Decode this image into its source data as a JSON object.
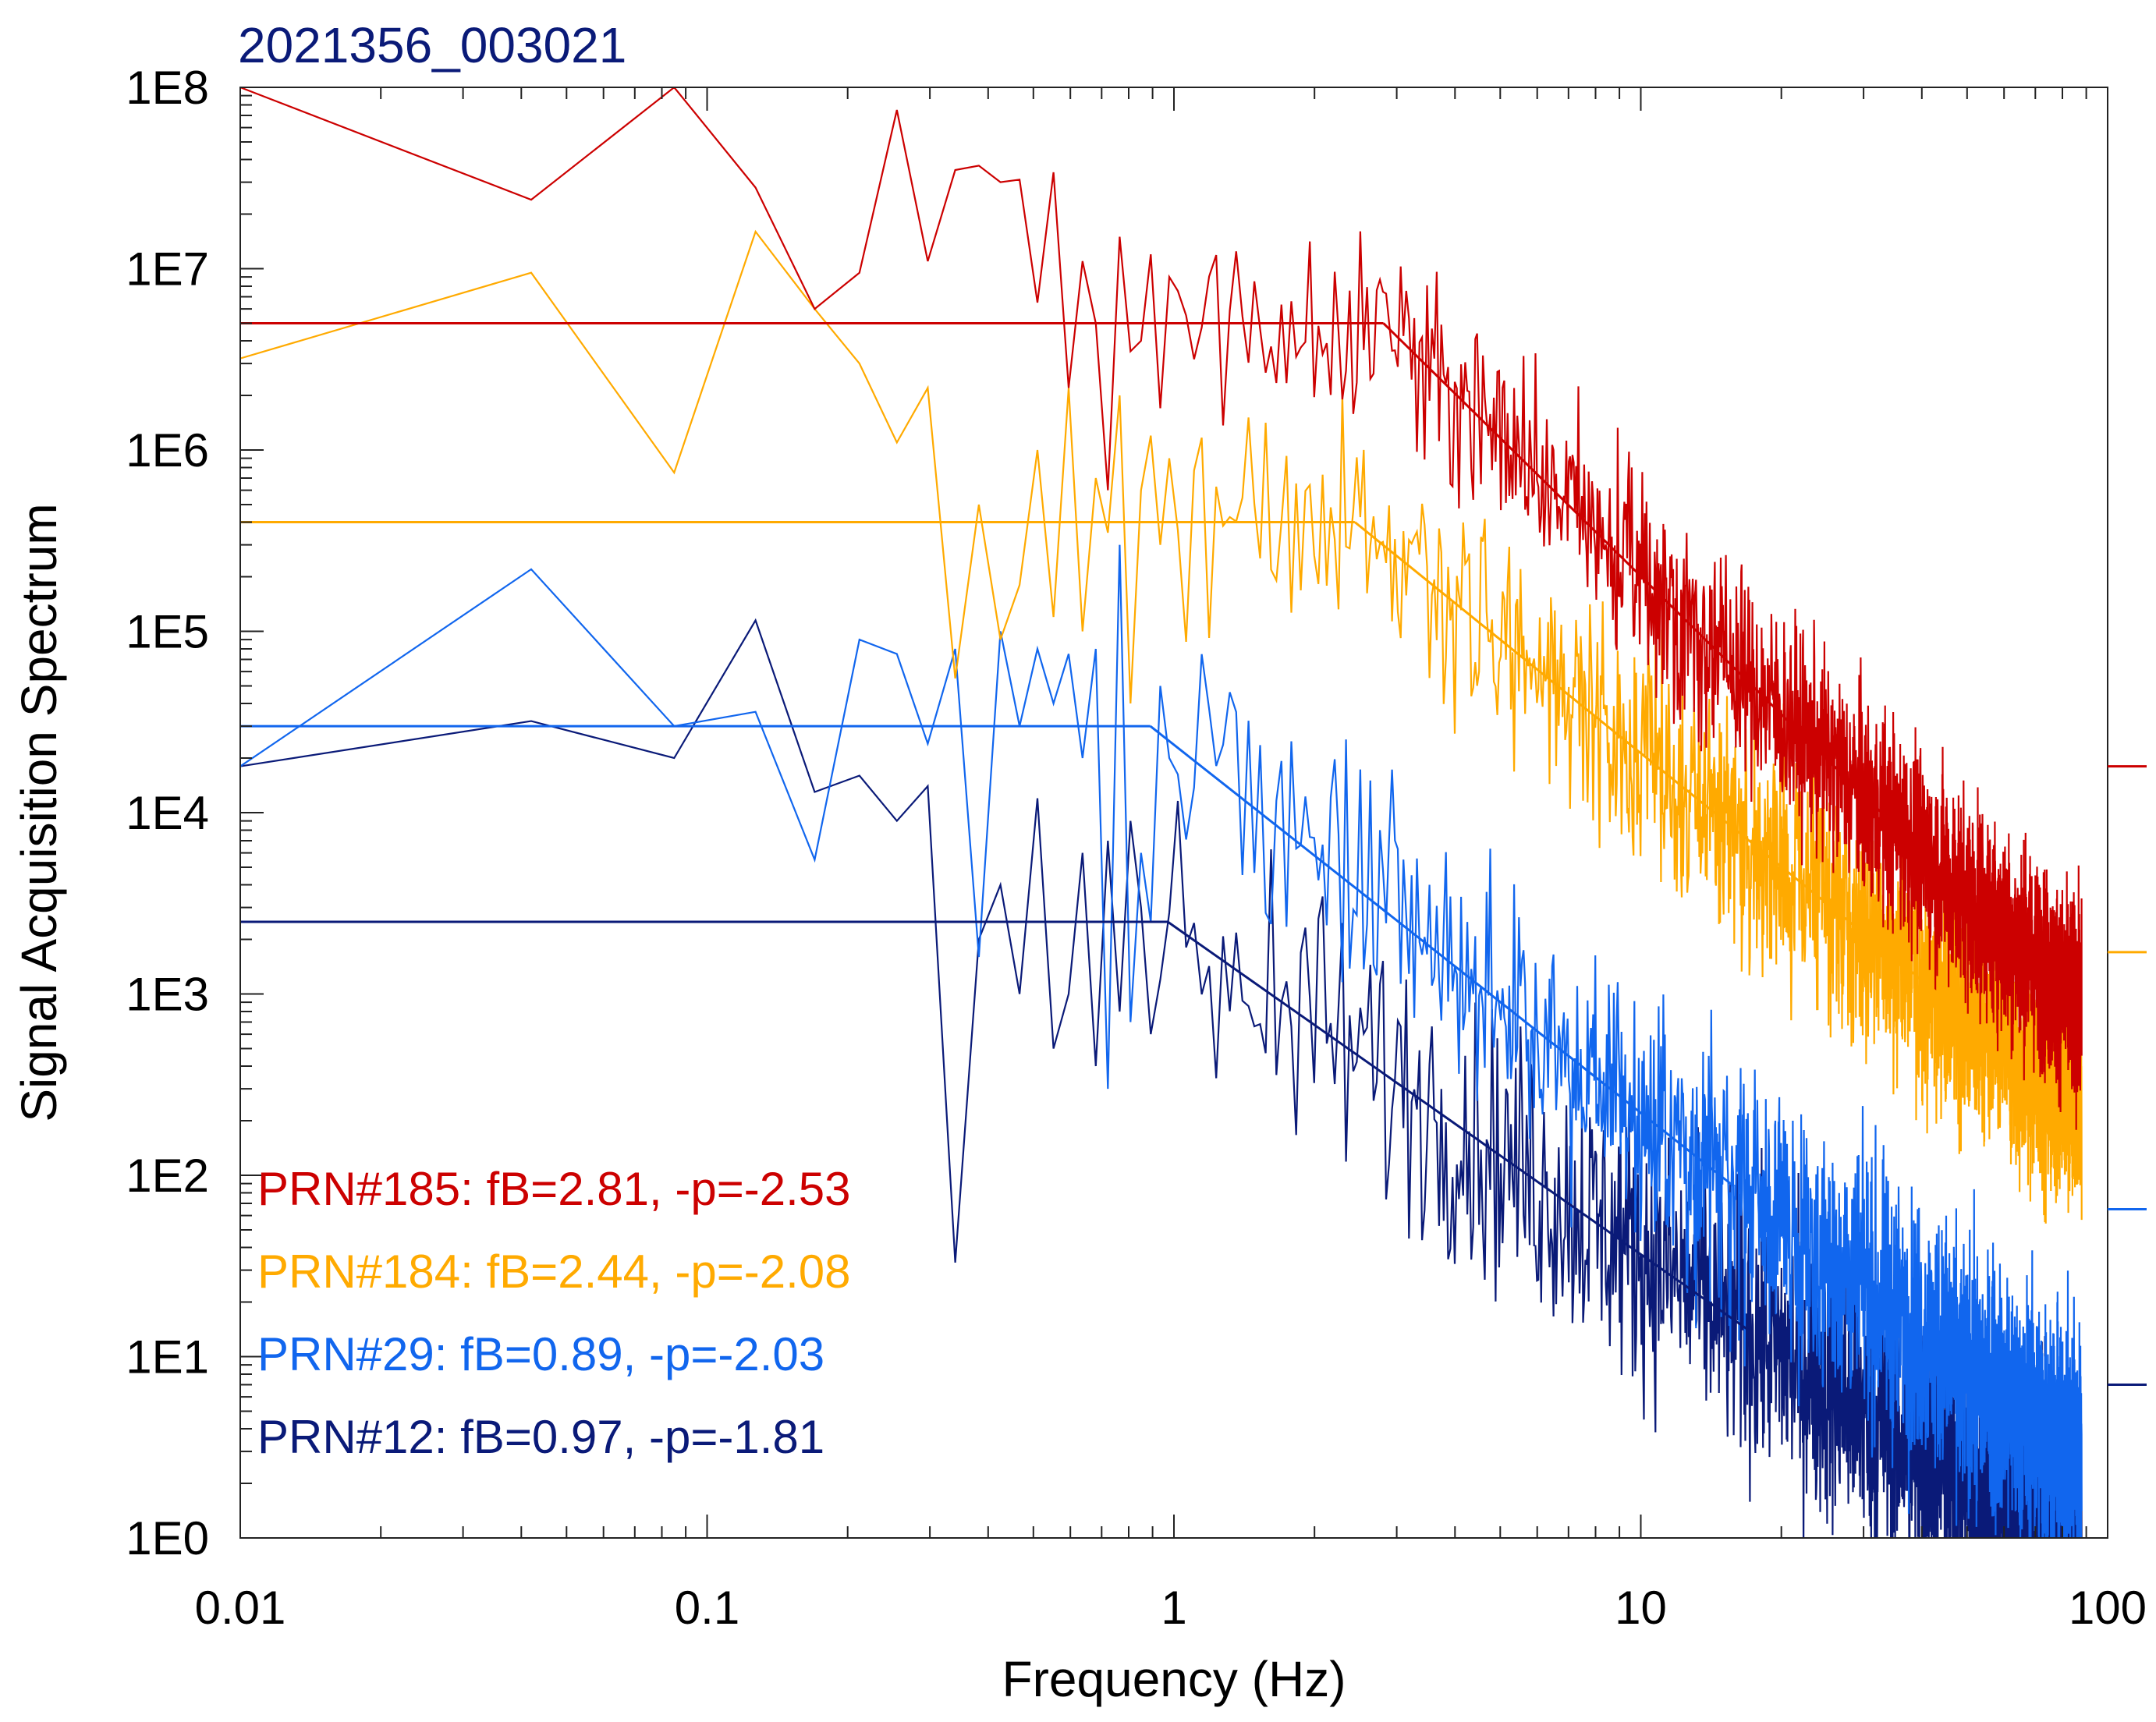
{
  "chart_data": {
    "type": "line",
    "title": "2021356_003021",
    "xlabel": "Frequency (Hz)",
    "ylabel": "Signal Acquisition Spectrum",
    "xscale": "log",
    "yscale": "log",
    "xlim": [
      0.01,
      100
    ],
    "ylim": [
      1,
      100000000
    ],
    "x_ticks": [
      {
        "value": 0.01,
        "label": "0.01"
      },
      {
        "value": 0.1,
        "label": "0.1"
      },
      {
        "value": 1,
        "label": "1"
      },
      {
        "value": 10,
        "label": "10"
      },
      {
        "value": 100,
        "label": "100"
      }
    ],
    "y_ticks": [
      {
        "value": 1,
        "label": "1E0"
      },
      {
        "value": 10,
        "label": "1E1"
      },
      {
        "value": 100,
        "label": "1E2"
      },
      {
        "value": 1000,
        "label": "1E3"
      },
      {
        "value": 10000,
        "label": "1E4"
      },
      {
        "value": 100000,
        "label": "1E5"
      },
      {
        "value": 1000000,
        "label": "1E6"
      },
      {
        "value": 10000000,
        "label": "1E7"
      },
      {
        "value": 100000000,
        "label": "1E8"
      }
    ],
    "legend_position": "bottom-left",
    "series": [
      {
        "name": "PRN#185",
        "legend": "PRN#185: fB=2.81, -p=-2.53",
        "color": "#cc0000",
        "break_frequency": 2.81,
        "slope": -2.53,
        "plateau": 5000000,
        "right_marker": 18000,
        "noise": 0.28,
        "x": [
          0.01,
          0.042,
          0.085,
          0.127,
          0.17,
          0.212,
          0.255,
          0.297,
          0.34,
          0.382,
          0.425,
          0.467,
          0.51,
          0.552,
          0.595,
          0.637,
          0.68,
          0.722,
          0.765,
          0.807,
          0.85,
          0.892,
          0.935,
          0.977
        ],
        "y": [
          100000000,
          24000000,
          100000000,
          28000000,
          6000000,
          9500000,
          75000000,
          11000000,
          35000000,
          37000000,
          30000000,
          31000000,
          6500000,
          34000000,
          2200000,
          11000000,
          5000000,
          600000,
          15000000,
          3500000,
          4000000,
          12000000,
          1700000,
          9000000
        ]
      },
      {
        "name": "PRN#184",
        "legend": "PRN#184: fB=2.44, -p=-2.08",
        "color": "#ffaa00",
        "break_frequency": 2.44,
        "slope": -2.08,
        "plateau": 400000,
        "right_marker": 1700,
        "noise": 0.32,
        "x": [
          0.01,
          0.042,
          0.085,
          0.127,
          0.17,
          0.212,
          0.255,
          0.297,
          0.34,
          0.382,
          0.425,
          0.467,
          0.51,
          0.552,
          0.595,
          0.637,
          0.68,
          0.722,
          0.765,
          0.807,
          0.85,
          0.892,
          0.935,
          0.977
        ],
        "y": [
          3200000,
          9500000,
          750000,
          16000000,
          6000000,
          3000000,
          1100000,
          2200000,
          55000,
          500000,
          90000,
          180000,
          1000000,
          120000,
          2200000,
          100000,
          700000,
          350000,
          2000000,
          40000,
          600000,
          1200000,
          300000,
          900000
        ]
      },
      {
        "name": "PRN#29",
        "legend": "PRN#29: fB=0.89, -p=-2.03",
        "color": "#1166ee",
        "break_frequency": 0.89,
        "slope": -2.03,
        "plateau": 30000,
        "right_marker": 65,
        "noise": 0.35,
        "x": [
          0.01,
          0.042,
          0.085,
          0.127,
          0.17,
          0.212,
          0.255,
          0.297,
          0.34,
          0.382,
          0.425,
          0.467,
          0.51,
          0.552,
          0.595,
          0.637,
          0.68,
          0.722,
          0.765,
          0.807,
          0.85,
          0.892,
          0.935,
          0.977
        ],
        "y": [
          18000,
          220000,
          30000,
          36000,
          5500,
          90000,
          75000,
          24000,
          80000,
          1600,
          100000,
          30000,
          80000,
          40000,
          75000,
          20000,
          80000,
          300,
          300000,
          700,
          6000,
          2500,
          50000,
          20000
        ]
      },
      {
        "name": "PRN#12",
        "legend": "PRN#12: fB=0.97, -p=-1.81",
        "color": "#0a1a78",
        "break_frequency": 0.97,
        "slope": -1.81,
        "plateau": 2500,
        "right_marker": 7,
        "noise": 0.38,
        "x": [
          0.01,
          0.042,
          0.085,
          0.127,
          0.17,
          0.212,
          0.255,
          0.297,
          0.34,
          0.382,
          0.425,
          0.467,
          0.51,
          0.552,
          0.595,
          0.637,
          0.68,
          0.722,
          0.765,
          0.807,
          0.85,
          0.892,
          0.935,
          0.977
        ],
        "y": [
          18000,
          32000,
          20000,
          115000,
          13000,
          16000,
          9000,
          14000,
          33,
          2000,
          4000,
          1000,
          12000,
          500,
          1000,
          6000,
          400,
          7000,
          800,
          9000,
          3000,
          600,
          1200,
          2800
        ]
      }
    ]
  }
}
